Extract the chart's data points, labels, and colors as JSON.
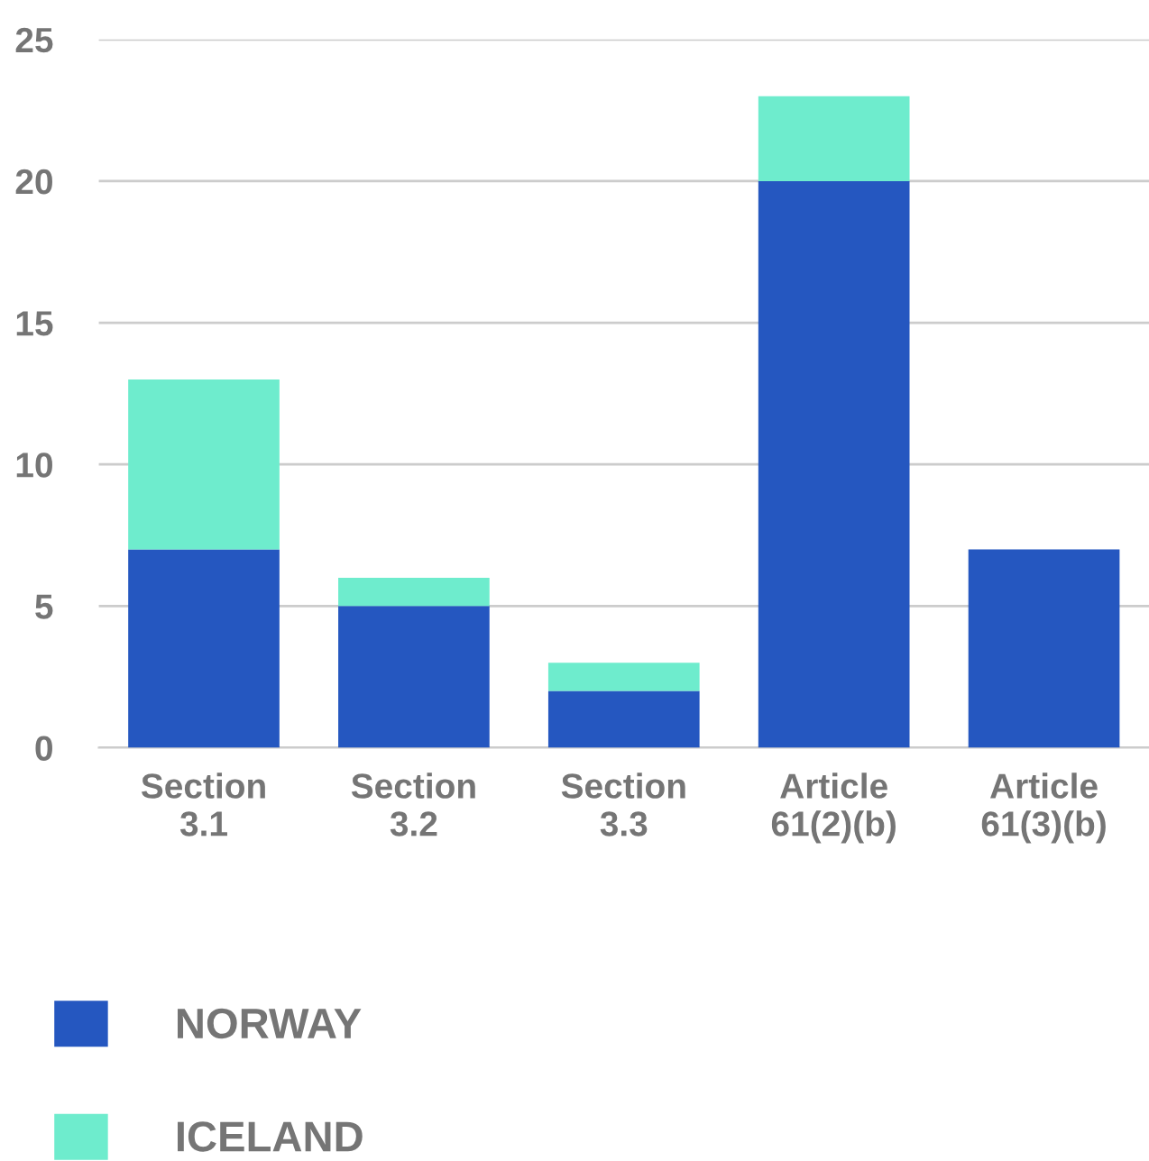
{
  "chart_data": {
    "type": "bar",
    "stacked": true,
    "categories": [
      "Section\n3.1",
      "Section\n3.2",
      "Section\n3.3",
      "Article\n61(2)(b)",
      "Article\n61(3)(b)"
    ],
    "series": [
      {
        "name": "NORWAY",
        "color": "#2557c0",
        "values": [
          7,
          5,
          2,
          20,
          7
        ]
      },
      {
        "name": "ICELAND",
        "color": "#6eeccd",
        "values": [
          6,
          1,
          1,
          3,
          0
        ]
      }
    ],
    "ylim": [
      0,
      25
    ],
    "yticks": [
      0,
      5,
      10,
      15,
      20,
      25
    ],
    "grid": "y",
    "legend": "bottom"
  }
}
